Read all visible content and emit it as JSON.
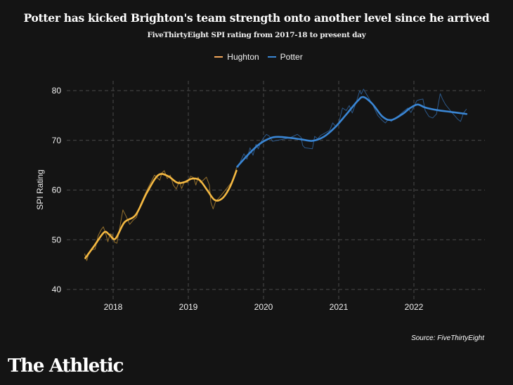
{
  "header": {
    "title": "Potter has kicked Brighton's team strength onto another level since he arrived",
    "subtitle": "FiveThirtyEight SPI rating from 2017-18 to present day"
  },
  "footer": {
    "source": "Source: FiveThirtyEight",
    "logo": "The Athletic"
  },
  "chart_data": {
    "type": "line",
    "title": "Potter has kicked Brighton's team strength onto another level since he arrived",
    "subtitle": "FiveThirtyEight SPI rating from 2017-18 to present day",
    "xlabel": "",
    "ylabel": "SPI Rating",
    "xlim": [
      2017.3,
      2022.95
    ],
    "ylim": [
      40,
      81
    ],
    "xticks": [
      2018,
      2019,
      2020,
      2021,
      2022
    ],
    "yticks": [
      40,
      50,
      60,
      70,
      80
    ],
    "grid": true,
    "legend_position": "top-center",
    "colors": {
      "Hughton": "#f5b942",
      "Potter": "#3a86d4",
      "background": "#141414",
      "grid": "#4a4a4a"
    },
    "series": [
      {
        "name": "Hughton",
        "kind": "smoothed",
        "color": "#f5b942",
        "x": [
          2017.63,
          2017.75,
          2017.88,
          2017.95,
          2018.03,
          2018.15,
          2018.3,
          2018.45,
          2018.6,
          2018.73,
          2018.85,
          2018.95,
          2019.05,
          2019.15,
          2019.25,
          2019.35,
          2019.45,
          2019.55,
          2019.64
        ],
        "y": [
          46.3,
          48.8,
          51.5,
          51.0,
          50.2,
          53.5,
          55.0,
          59.5,
          63.0,
          62.8,
          61.5,
          61.6,
          62.3,
          62.0,
          60.0,
          58.0,
          58.3,
          60.5,
          63.9
        ]
      },
      {
        "name": "Hughton",
        "kind": "raw",
        "color": "#a37a30",
        "x": [
          2017.62,
          2017.65,
          2017.68,
          2017.72,
          2017.76,
          2017.8,
          2017.84,
          2017.87,
          2017.9,
          2017.93,
          2017.96,
          2017.99,
          2018.02,
          2018.05,
          2018.09,
          2018.13,
          2018.17,
          2018.22,
          2018.27,
          2018.31,
          2018.36,
          2018.45,
          2018.55,
          2018.62,
          2018.65,
          2018.68,
          2018.72,
          2018.76,
          2018.8,
          2018.84,
          2018.88,
          2018.91,
          2018.95,
          2018.99,
          2019.03,
          2019.07,
          2019.1,
          2019.13,
          2019.16,
          2019.2,
          2019.24,
          2019.28,
          2019.3,
          2019.33,
          2019.36,
          2019.44,
          2019.52,
          2019.6,
          2019.64
        ],
        "y": [
          47.2,
          45.8,
          47.5,
          48.0,
          48.1,
          50.8,
          52.0,
          52.6,
          51.3,
          49.6,
          51.2,
          51.0,
          49.5,
          49.3,
          52.6,
          56.0,
          54.8,
          53.1,
          54.0,
          54.5,
          57.0,
          60.0,
          63.0,
          62.0,
          63.5,
          63.9,
          62.3,
          63.0,
          61.0,
          60.2,
          61.8,
          60.3,
          61.7,
          61.5,
          62.8,
          62.5,
          61.0,
          62.6,
          61.5,
          62.0,
          62.6,
          61.0,
          57.5,
          56.2,
          57.6,
          59.0,
          60.5,
          62.0,
          64.5
        ]
      },
      {
        "name": "Potter",
        "kind": "smoothed",
        "color": "#3a86d4",
        "x": [
          2019.65,
          2019.8,
          2019.95,
          2020.1,
          2020.2,
          2020.35,
          2020.5,
          2020.65,
          2020.8,
          2020.95,
          2021.1,
          2021.25,
          2021.33,
          2021.45,
          2021.58,
          2021.7,
          2021.85,
          2021.95,
          2022.05,
          2022.15,
          2022.3,
          2022.5,
          2022.7
        ],
        "y": [
          64.7,
          67.2,
          69.3,
          70.5,
          70.7,
          70.5,
          70.2,
          69.9,
          70.7,
          72.6,
          75.2,
          77.9,
          78.7,
          77.3,
          74.8,
          74.1,
          75.3,
          76.5,
          77.2,
          76.6,
          76.1,
          75.7,
          75.3
        ]
      },
      {
        "name": "Potter",
        "kind": "raw",
        "color": "#2f5f96",
        "x": [
          2019.66,
          2019.7,
          2019.74,
          2019.78,
          2019.82,
          2019.86,
          2019.9,
          2019.93,
          2019.96,
          2020.0,
          2020.04,
          2020.08,
          2020.12,
          2020.18,
          2020.25,
          2020.35,
          2020.45,
          2020.5,
          2020.52,
          2020.55,
          2020.65,
          2020.68,
          2020.72,
          2020.76,
          2020.82,
          2020.88,
          2020.92,
          2020.96,
          2021.0,
          2021.05,
          2021.1,
          2021.14,
          2021.18,
          2021.24,
          2021.28,
          2021.3,
          2021.33,
          2021.36,
          2021.4,
          2021.45,
          2021.52,
          2021.58,
          2021.62,
          2021.66,
          2021.7,
          2021.75,
          2021.8,
          2021.86,
          2021.92,
          2021.96,
          2022.0,
          2022.04,
          2022.08,
          2022.12,
          2022.15,
          2022.2,
          2022.25,
          2022.3,
          2022.35,
          2022.38,
          2022.42,
          2022.5,
          2022.58,
          2022.62,
          2022.66,
          2022.7
        ],
        "y": [
          64.5,
          66.0,
          67.3,
          66.2,
          68.5,
          67.0,
          69.2,
          68.3,
          69.5,
          70.5,
          71.2,
          70.8,
          69.8,
          70.0,
          70.2,
          70.5,
          71.2,
          70.6,
          69.0,
          68.5,
          68.3,
          70.8,
          70.3,
          71.0,
          71.5,
          72.0,
          73.5,
          72.8,
          73.5,
          76.5,
          76.0,
          77.0,
          75.5,
          78.0,
          80.0,
          79.3,
          80.3,
          79.5,
          78.5,
          77.2,
          75.0,
          74.0,
          73.5,
          74.2,
          73.8,
          74.5,
          75.0,
          75.8,
          76.5,
          75.6,
          76.8,
          78.0,
          78.2,
          78.3,
          76.0,
          74.8,
          74.5,
          75.3,
          79.4,
          78.3,
          77.2,
          75.7,
          74.3,
          73.8,
          75.5,
          76.3
        ]
      }
    ]
  }
}
